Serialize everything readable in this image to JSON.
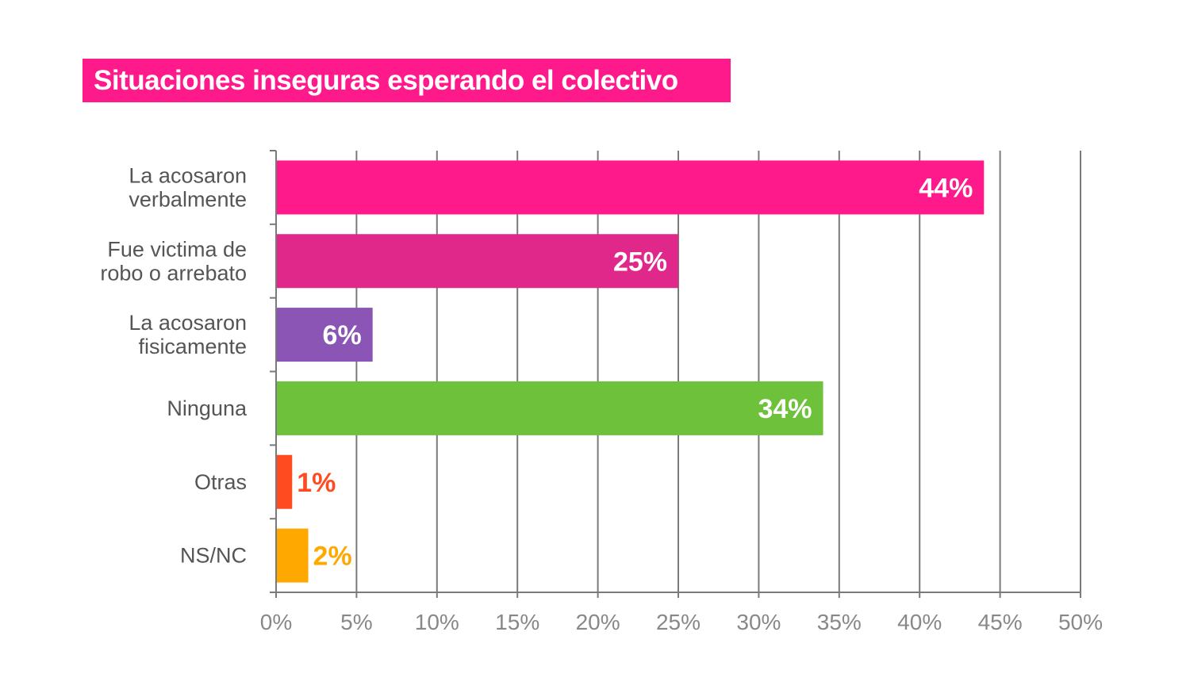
{
  "chart_data": {
    "type": "bar",
    "orientation": "horizontal",
    "title": "Situaciones inseguras esperando el colectivo",
    "categories": [
      [
        "La acosaron",
        "verbalmente"
      ],
      [
        "Fue victima de",
        "robo o arrebato"
      ],
      [
        "La acosaron",
        "fisicamente"
      ],
      [
        "Ninguna"
      ],
      [
        "Otras"
      ],
      [
        "NS/NC"
      ]
    ],
    "values": [
      44,
      25,
      6,
      34,
      1,
      2
    ],
    "value_labels": [
      "44%",
      "25%",
      "6%",
      "34%",
      "1%",
      "2%"
    ],
    "bar_colors": [
      "#ff1a8c",
      "#e0288a",
      "#8a55b5",
      "#6ec13a",
      "#ff4b1f",
      "#ffa800"
    ],
    "value_label_colors": [
      "#ffffff",
      "#ffffff",
      "#ffffff",
      "#ffffff",
      "#ff4b1f",
      "#ffa800"
    ],
    "value_label_inside": [
      true,
      true,
      true,
      true,
      false,
      false
    ],
    "xlim": [
      0,
      50
    ],
    "xticks": [
      0,
      5,
      10,
      15,
      20,
      25,
      30,
      35,
      40,
      45,
      50
    ],
    "xtick_labels": [
      "0%",
      "5%",
      "10%",
      "15%",
      "20%",
      "25%",
      "30%",
      "35%",
      "40%",
      "45%",
      "50%"
    ],
    "grid": true,
    "legend": "none"
  }
}
